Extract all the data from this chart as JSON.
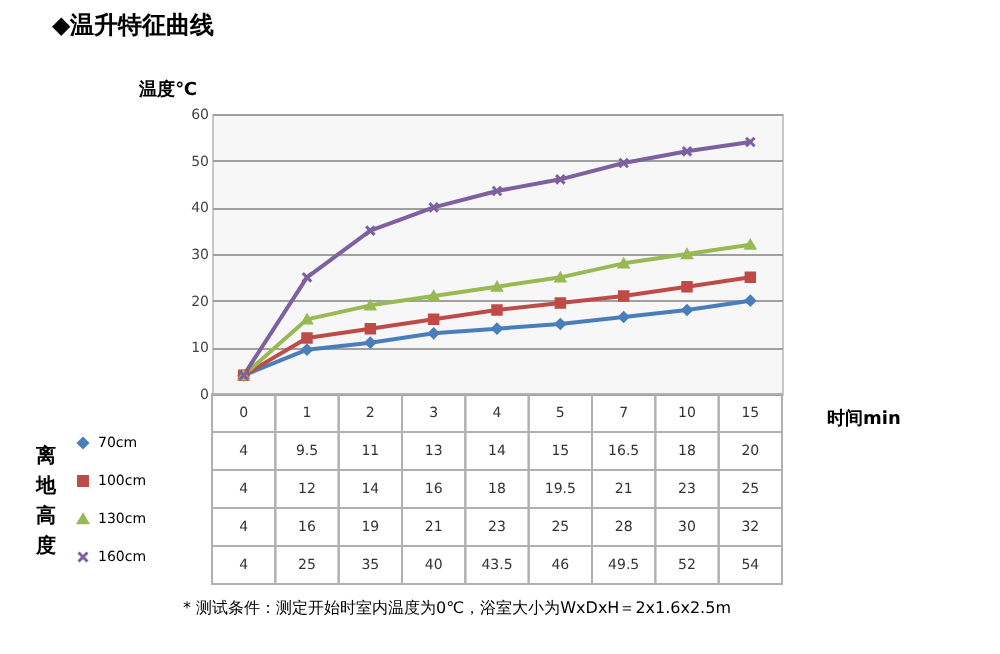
{
  "chart_data": {
    "type": "line",
    "title": "◆温升特征曲线",
    "xlabel": "时间min",
    "ylabel": "温度℃",
    "legend_title": "离地高度",
    "categories": [
      "0",
      "1",
      "2",
      "3",
      "4",
      "5",
      "7",
      "10",
      "15"
    ],
    "series": [
      {
        "name": "70cm",
        "color": "#4a7ebb",
        "marker": "diamond",
        "values": [
          4,
          9.5,
          11,
          13,
          14,
          15,
          16.5,
          18,
          20
        ]
      },
      {
        "name": "100cm",
        "color": "#be4b48",
        "marker": "square",
        "values": [
          4,
          12,
          14,
          16,
          18,
          19.5,
          21,
          23,
          25
        ]
      },
      {
        "name": "130cm",
        "color": "#98b954",
        "marker": "triangle",
        "values": [
          4,
          16,
          19,
          21,
          23,
          25,
          28,
          30,
          32
        ]
      },
      {
        "name": "160cm",
        "color": "#7d60a0",
        "marker": "cross",
        "values": [
          4,
          25,
          35,
          40,
          43.5,
          46,
          49.5,
          52,
          54
        ]
      }
    ],
    "ylim": [
      0,
      60
    ],
    "yticks": [
      0,
      10,
      20,
      30,
      40,
      50,
      60
    ],
    "grid": "y",
    "legend": "left",
    "data_labels": true,
    "annotations": [
      "* 测试条件：测定开始时室内温度为0℃，浴室大小为WxDxH＝2x1.6x2.5m"
    ]
  }
}
